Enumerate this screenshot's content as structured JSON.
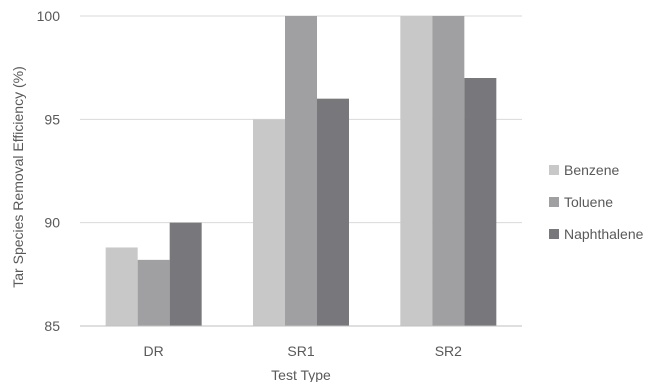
{
  "chart_data": {
    "type": "bar",
    "xlabel": "Test Type",
    "ylabel": "Tar Species Removal Efficiency (%)",
    "categories": [
      "DR",
      "SR1",
      "SR2"
    ],
    "series": [
      {
        "name": "Benzene",
        "values": [
          88.8,
          95.0,
          100.0
        ],
        "color": "#c8c8c8"
      },
      {
        "name": "Toluene",
        "values": [
          88.2,
          100.0,
          100.0
        ],
        "color": "#a0a0a2"
      },
      {
        "name": "Naphthalene",
        "values": [
          90.0,
          96.0,
          97.0
        ],
        "color": "#78787c"
      }
    ],
    "ylim": [
      85,
      100
    ],
    "yticks": [
      85,
      90,
      95,
      100
    ],
    "grid": true,
    "legend": "right"
  }
}
